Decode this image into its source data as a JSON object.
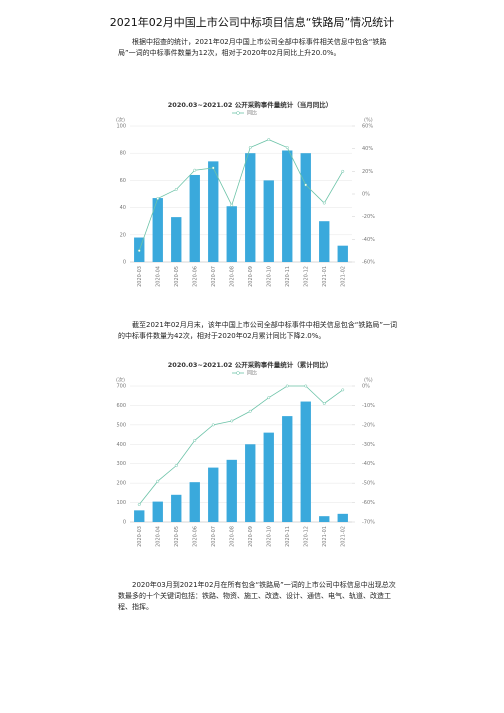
{
  "document": {
    "title": "2021年02月中国上市公司中标项目信息“铁路局”情况统计",
    "paragraphs": [
      "根据中招查的统计，2021年02月中国上市公司全部中标事件相关信息中包含“铁路局”一词的中标事件数量为12次，相对于2020年02月同比上升20.0%。",
      "截至2021年02月月末，该年中国上市公司全部中标事件中相关信息包含“铁路局”一词的中标事件数量为42次，相对于2020年02月累计同比下降2.0%。",
      "2020年03月到2021年02月在所有包含“铁路局”一词的上市公司中标信息中出现总次数最多的十个关键词包括：铁路、物资、施工、改造、设计、通信、电气、轨道、改造工程、指挥。"
    ]
  },
  "chart_data": [
    {
      "type": "bar",
      "title": "2020.03~2021.02 公开采购事件量统计（当月同比）",
      "y_label": "(次)",
      "y2_label": "(%)",
      "categories": [
        "2020-03",
        "2020-04",
        "2020-05",
        "2020-06",
        "2020-07",
        "2020-08",
        "2020-09",
        "2020-10",
        "2020-11",
        "2020-12",
        "2021-01",
        "2021-02"
      ],
      "series": [
        {
          "type": "bar",
          "color": "#3aa9dc",
          "values": [
            18,
            47,
            33,
            64,
            74,
            41,
            80,
            60,
            82,
            80,
            30,
            12
          ]
        },
        {
          "type": "line",
          "name": "同比",
          "axis": "y2",
          "color": "#6cc3a8",
          "values": [
            -50,
            -4,
            4,
            21,
            23,
            -10,
            41,
            48,
            41,
            8,
            -8,
            20
          ]
        }
      ],
      "ylim": [
        0,
        100
      ],
      "yticks": [
        0,
        20,
        40,
        60,
        80,
        100
      ],
      "y2lim": [
        -60,
        60
      ],
      "y2ticks": [
        {
          "value": -60,
          "label": "-60%"
        },
        {
          "value": -40,
          "label": "-40%"
        },
        {
          "value": -20,
          "label": "-20%"
        },
        {
          "value": 0,
          "label": "0%"
        },
        {
          "value": 20,
          "label": "20%"
        },
        {
          "value": 40,
          "label": "40%"
        },
        {
          "value": 60,
          "label": "60%"
        }
      ],
      "grid": true
    },
    {
      "type": "bar",
      "title": "2020.03~2021.02 公开采购事件量统计（累计同比）",
      "y_label": "(次)",
      "y2_label": "(%)",
      "categories": [
        "2020-03",
        "2020-04",
        "2020-05",
        "2020-06",
        "2020-07",
        "2020-08",
        "2020-09",
        "2020-10",
        "2020-11",
        "2020-12",
        "2021-01",
        "2021-02"
      ],
      "series": [
        {
          "type": "bar",
          "color": "#3aa9dc",
          "values": [
            60,
            105,
            140,
            205,
            280,
            320,
            400,
            460,
            545,
            620,
            30,
            42
          ]
        },
        {
          "type": "line",
          "name": "同比",
          "axis": "y2",
          "color": "#6cc3a8",
          "values": [
            -61,
            -49,
            -41,
            -28,
            -20,
            -18,
            -13,
            -6,
            0,
            0,
            -9,
            -2
          ]
        }
      ],
      "ylim": [
        0,
        700
      ],
      "yticks": [
        0,
        100,
        200,
        300,
        400,
        500,
        600,
        700
      ],
      "y2lim": [
        -70,
        0
      ],
      "y2ticks": [
        {
          "value": -70,
          "label": "-70%"
        },
        {
          "value": -60,
          "label": "-60%"
        },
        {
          "value": -50,
          "label": "-50%"
        },
        {
          "value": -40,
          "label": "-40%"
        },
        {
          "value": -30,
          "label": "-30%"
        },
        {
          "value": -20,
          "label": "-20%"
        },
        {
          "value": -10,
          "label": "-10%"
        },
        {
          "value": 0,
          "label": "0%"
        }
      ],
      "grid": true
    }
  ]
}
